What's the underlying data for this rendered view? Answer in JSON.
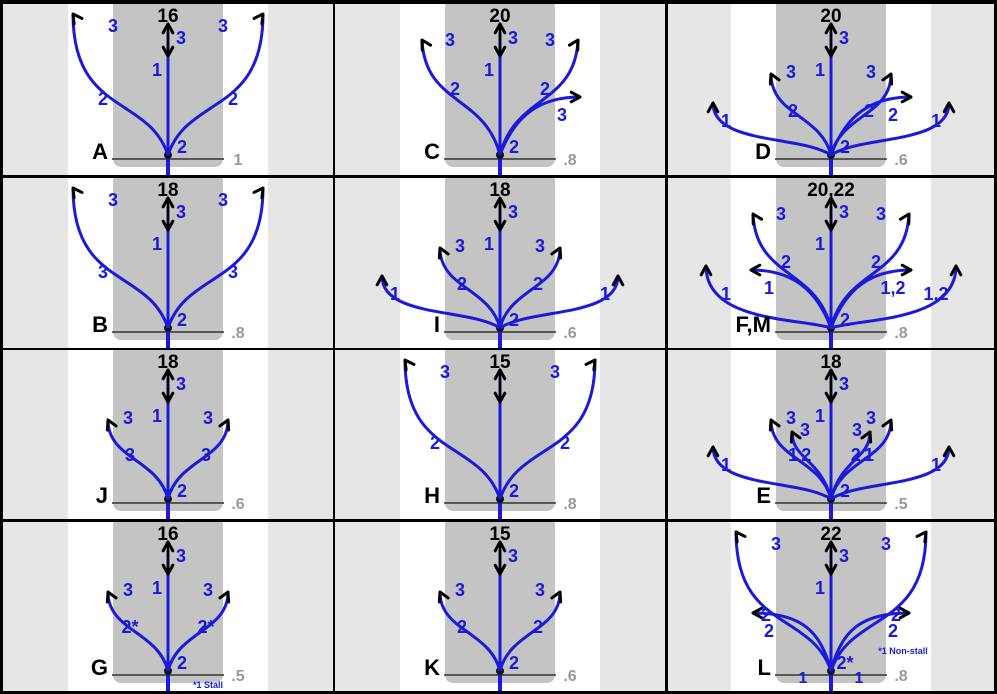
{
  "panels": [
    {
      "letter": "A",
      "title": "16",
      "value": "1",
      "left_label": "",
      "right_label": "",
      "note": "",
      "arms": [
        {
          "side": "C",
          "labels": [
            "1",
            "3"
          ],
          "style": "vert"
        },
        {
          "side": "L",
          "labels": [
            "2",
            "3"
          ],
          "style": "wide"
        },
        {
          "side": "R",
          "labels": [
            "2",
            "3"
          ],
          "style": "wide"
        }
      ],
      "stem_label": "2"
    },
    {
      "letter": "C",
      "title": "20",
      "value": ".8",
      "arms": [
        {
          "side": "C",
          "labels": [
            "1",
            "3"
          ],
          "style": "vert"
        },
        {
          "side": "L",
          "labels": [
            "2",
            "3"
          ],
          "style": "mid"
        },
        {
          "side": "R",
          "labels": [
            "2",
            "3"
          ],
          "style": "mid"
        },
        {
          "side": "R",
          "labels": [
            "3"
          ],
          "style": "short"
        }
      ],
      "stem_label": "2"
    },
    {
      "letter": "D",
      "title": "20",
      "value": ".6",
      "arms": [
        {
          "side": "C",
          "labels": [
            "1",
            "3"
          ],
          "style": "vert"
        },
        {
          "side": "L",
          "labels": [
            "2",
            "3"
          ],
          "style": "narrow"
        },
        {
          "side": "R",
          "labels": [
            "2",
            "3"
          ],
          "style": "narrow"
        },
        {
          "side": "L",
          "labels": [
            "1"
          ],
          "style": "low"
        },
        {
          "side": "R",
          "labels": [
            "1"
          ],
          "style": "low"
        },
        {
          "side": "R",
          "labels": [
            "2"
          ],
          "style": "short"
        }
      ],
      "stem_label": "2"
    },
    {
      "letter": "B",
      "title": "18",
      "value": ".8",
      "arms": [
        {
          "side": "C",
          "labels": [
            "1",
            "3"
          ],
          "style": "vert"
        },
        {
          "side": "L",
          "labels": [
            "3",
            "3"
          ],
          "style": "wide"
        },
        {
          "side": "R",
          "labels": [
            "3",
            "3"
          ],
          "style": "wide"
        }
      ],
      "stem_label": "2"
    },
    {
      "letter": "I",
      "title": "18",
      "value": ".6",
      "arms": [
        {
          "side": "C",
          "labels": [
            "1",
            "3"
          ],
          "style": "vert"
        },
        {
          "side": "L",
          "labels": [
            "2",
            "3"
          ],
          "style": "narrow"
        },
        {
          "side": "R",
          "labels": [
            "2",
            "3"
          ],
          "style": "narrow"
        },
        {
          "side": "L",
          "labels": [
            "1"
          ],
          "style": "low"
        },
        {
          "side": "R",
          "labels": [
            "1"
          ],
          "style": "low"
        }
      ],
      "stem_label": "2"
    },
    {
      "letter": "F,M",
      "title": "20,22",
      "value": ".8",
      "arms": [
        {
          "side": "C",
          "labels": [
            "1",
            "3"
          ],
          "style": "vert"
        },
        {
          "side": "L",
          "labels": [
            "2",
            "3"
          ],
          "style": "mid"
        },
        {
          "side": "R",
          "labels": [
            "2",
            "3"
          ],
          "style": "mid"
        },
        {
          "side": "L",
          "labels": [
            "1"
          ],
          "style": "lowwide"
        },
        {
          "side": "R",
          "labels": [
            "1,2"
          ],
          "style": "lowwide"
        },
        {
          "side": "L",
          "labels": [
            "1"
          ],
          "style": "short"
        },
        {
          "side": "R",
          "labels": [
            "1,2"
          ],
          "style": "short"
        }
      ],
      "stem_label": "2"
    },
    {
      "letter": "J",
      "title": "18",
      "value": ".6",
      "arms": [
        {
          "side": "C",
          "labels": [
            "1",
            "3"
          ],
          "style": "vert"
        },
        {
          "side": "L",
          "labels": [
            "3",
            "3"
          ],
          "style": "narrow"
        },
        {
          "side": "R",
          "labels": [
            "3",
            "3"
          ],
          "style": "narrow"
        }
      ],
      "stem_label": "2"
    },
    {
      "letter": "H",
      "title": "15",
      "value": ".8",
      "arms": [
        {
          "side": "C",
          "labels": [
            "",
            ""
          ],
          "style": "vert"
        },
        {
          "side": "L",
          "labels": [
            "2",
            "3"
          ],
          "style": "wide"
        },
        {
          "side": "R",
          "labels": [
            "2",
            "3"
          ],
          "style": "wide"
        }
      ],
      "stem_label": "2"
    },
    {
      "letter": "E",
      "title": "18",
      "value": ".5",
      "arms": [
        {
          "side": "C",
          "labels": [
            "1",
            "3"
          ],
          "style": "vert"
        },
        {
          "side": "L",
          "labels": [
            "1",
            "3"
          ],
          "style": "narrow"
        },
        {
          "side": "R",
          "labels": [
            "1",
            "3"
          ],
          "style": "narrow"
        },
        {
          "side": "L",
          "labels": [
            "2",
            "3"
          ],
          "style": "narrow2"
        },
        {
          "side": "R",
          "labels": [
            "2",
            "3"
          ],
          "style": "narrow2"
        },
        {
          "side": "L",
          "labels": [
            "1"
          ],
          "style": "low"
        },
        {
          "side": "R",
          "labels": [
            "1"
          ],
          "style": "low"
        }
      ],
      "stem_label": "2"
    },
    {
      "letter": "G",
      "title": "16",
      "value": ".5",
      "note": "*1 Stall",
      "arms": [
        {
          "side": "C",
          "labels": [
            "1",
            "3"
          ],
          "style": "vert"
        },
        {
          "side": "L",
          "labels": [
            "2*",
            "3"
          ],
          "style": "narrow"
        },
        {
          "side": "R",
          "labels": [
            "2*",
            "3"
          ],
          "style": "narrow"
        }
      ],
      "stem_label": "2"
    },
    {
      "letter": "K",
      "title": "15",
      "value": ".6",
      "arms": [
        {
          "side": "C",
          "labels": [
            "",
            "3"
          ],
          "style": "vert"
        },
        {
          "side": "L",
          "labels": [
            "2",
            "3"
          ],
          "style": "narrow"
        },
        {
          "side": "R",
          "labels": [
            "2",
            "3"
          ],
          "style": "narrow"
        }
      ],
      "stem_label": "2"
    },
    {
      "letter": "L",
      "title": "22",
      "value": ".8",
      "note": "*1 Non-stall",
      "arms": [
        {
          "side": "C",
          "labels": [
            "1",
            "3"
          ],
          "style": "vert"
        },
        {
          "side": "L",
          "labels": [
            "2",
            "3"
          ],
          "style": "wide"
        },
        {
          "side": "R",
          "labels": [
            "2",
            "3"
          ],
          "style": "wide"
        },
        {
          "side": "L",
          "labels": [
            "2"
          ],
          "style": "flat"
        },
        {
          "side": "R",
          "labels": [
            "2"
          ],
          "style": "flat"
        }
      ],
      "stem_label": "2*",
      "bottom_labels": [
        "1",
        "1"
      ]
    }
  ],
  "colors": {
    "route": "#1a1adc",
    "arrow": "#000000",
    "field": "#c4c4c4",
    "bg": "#ffffff",
    "side": "#e6e6e6",
    "grid": "#000000"
  }
}
